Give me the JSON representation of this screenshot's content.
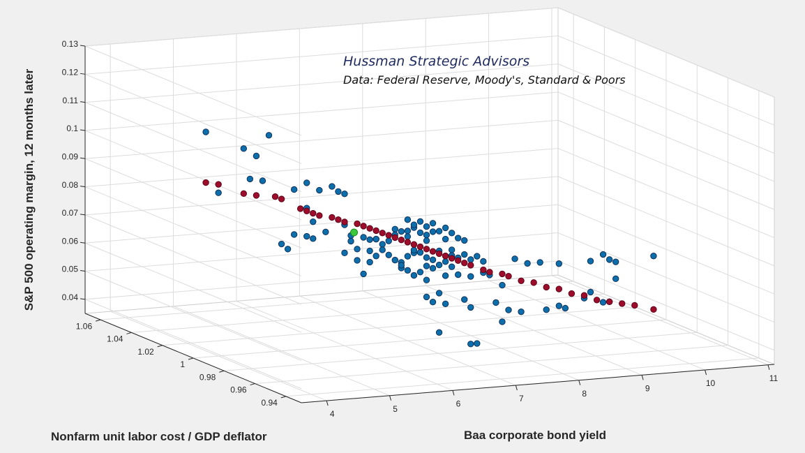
{
  "chart_data": {
    "type": "scatter",
    "subtype": "3d-scatter",
    "annotation_title": "Hussman Strategic Advisors",
    "annotation_source": "Data: Federal Reserve, Moody's, Standard & Poors",
    "xlabel": "Baa corporate bond yield",
    "ylabel": "Nonfarm unit labor cost / GDP deflator",
    "zlabel": "S&P 500 operating margin, 12 months later",
    "x_ticks": [
      "4",
      "5",
      "6",
      "7",
      "8",
      "9",
      "10",
      "11"
    ],
    "y_ticks": [
      "1.06",
      "1.04",
      "1.02",
      "1",
      "0.98",
      "0.96",
      "0.94"
    ],
    "z_ticks": [
      "0.13",
      "0.12",
      "0.11",
      "0.1",
      "0.09",
      "0.08",
      "0.07",
      "0.06",
      "0.05",
      "0.04"
    ],
    "xlim": [
      3.6,
      11.1
    ],
    "ylim": [
      0.93,
      1.07
    ],
    "zlim": [
      0.035,
      0.13
    ],
    "grid": true,
    "colors": {
      "actual": "#0c6eaa",
      "actual_edge": "#12315a",
      "fitted": "#9e0c2c",
      "fitted_edge": "#5a0518",
      "highlight": "#3cc83c",
      "background": "#f0f0f0",
      "pane": "#ffffff",
      "grid": "#dcdcdc"
    },
    "series": [
      {
        "role": "actual",
        "note": "observed values, positions approximate (x, z projected; y fixed near mid depth)",
        "points": [
          [
            3.8,
            1.0,
            0.115
          ],
          [
            4.0,
            1.0,
            0.093
          ],
          [
            4.4,
            1.0,
            0.108
          ],
          [
            4.6,
            1.0,
            0.105
          ],
          [
            4.8,
            1.0,
            0.112
          ],
          [
            4.5,
            1.0,
            0.097
          ],
          [
            4.7,
            1.0,
            0.096
          ],
          [
            5.2,
            1.0,
            0.092
          ],
          [
            5.4,
            1.0,
            0.094
          ],
          [
            5.6,
            1.0,
            0.091
          ],
          [
            5.8,
            1.0,
            0.092
          ],
          [
            5.9,
            1.0,
            0.09
          ],
          [
            6.0,
            1.0,
            0.089
          ],
          [
            5.4,
            1.0,
            0.085
          ],
          [
            5.5,
            1.0,
            0.08
          ],
          [
            5.2,
            1.0,
            0.076
          ],
          [
            5.0,
            1.0,
            0.073
          ],
          [
            5.1,
            1.0,
            0.071
          ],
          [
            5.4,
            1.0,
            0.075
          ],
          [
            5.5,
            1.0,
            0.074
          ],
          [
            5.7,
            1.0,
            0.076
          ],
          [
            6.0,
            1.0,
            0.078
          ],
          [
            6.1,
            1.0,
            0.074
          ],
          [
            6.1,
            1.0,
            0.072
          ],
          [
            6.0,
            1.0,
            0.068
          ],
          [
            6.3,
            1.0,
            0.073
          ],
          [
            6.4,
            1.0,
            0.072
          ],
          [
            6.4,
            1.0,
            0.068
          ],
          [
            6.5,
            1.0,
            0.072
          ],
          [
            6.6,
            1.0,
            0.07
          ],
          [
            6.5,
            1.0,
            0.066
          ],
          [
            6.6,
            1.0,
            0.068
          ],
          [
            6.7,
            1.0,
            0.071
          ],
          [
            6.8,
            1.0,
            0.075
          ],
          [
            6.8,
            1.0,
            0.073
          ],
          [
            6.9,
            1.0,
            0.074
          ],
          [
            7.0,
            1.0,
            0.074
          ],
          [
            7.0,
            1.0,
            0.072
          ],
          [
            7.1,
            1.0,
            0.075
          ],
          [
            7.2,
            1.0,
            0.073
          ],
          [
            7.3,
            1.0,
            0.072
          ],
          [
            7.3,
            1.0,
            0.07
          ],
          [
            7.5,
            1.0,
            0.073
          ],
          [
            7.6,
            1.0,
            0.07
          ],
          [
            7.7,
            1.0,
            0.072
          ],
          [
            7.8,
            1.0,
            0.07
          ],
          [
            7.9,
            1.0,
            0.069
          ],
          [
            7.0,
            1.0,
            0.078
          ],
          [
            7.1,
            1.0,
            0.076
          ],
          [
            7.3,
            1.0,
            0.075
          ],
          [
            7.2,
            1.0,
            0.077
          ],
          [
            7.4,
            1.0,
            0.076
          ],
          [
            7.4,
            1.0,
            0.073
          ],
          [
            7.6,
            1.0,
            0.074
          ],
          [
            7.7,
            1.0,
            0.066
          ],
          [
            6.7,
            1.0,
            0.066
          ],
          [
            6.8,
            1.0,
            0.064
          ],
          [
            6.9,
            1.0,
            0.063
          ],
          [
            7.1,
            1.0,
            0.066
          ],
          [
            7.2,
            1.0,
            0.066
          ],
          [
            7.3,
            1.0,
            0.064
          ],
          [
            7.4,
            1.0,
            0.063
          ],
          [
            7.5,
            1.0,
            0.066
          ],
          [
            7.6,
            1.0,
            0.064
          ],
          [
            7.7,
            1.0,
            0.064
          ],
          [
            7.8,
            1.0,
            0.063
          ],
          [
            7.9,
            1.0,
            0.064
          ],
          [
            8.0,
            1.0,
            0.062
          ],
          [
            8.1,
            1.0,
            0.063
          ],
          [
            8.2,
            1.0,
            0.061
          ],
          [
            7.3,
            1.0,
            0.061
          ],
          [
            7.4,
            1.0,
            0.06
          ],
          [
            7.5,
            1.0,
            0.061
          ],
          [
            7.6,
            1.0,
            0.062
          ],
          [
            7.7,
            1.0,
            0.06
          ],
          [
            7.1,
            1.0,
            0.058
          ],
          [
            7.3,
            1.0,
            0.056
          ],
          [
            7.6,
            1.0,
            0.057
          ],
          [
            7.8,
            1.0,
            0.057
          ],
          [
            8.0,
            1.0,
            0.056
          ],
          [
            8.2,
            1.0,
            0.057
          ],
          [
            8.3,
            1.0,
            0.056
          ],
          [
            8.5,
            1.0,
            0.052
          ],
          [
            8.7,
            1.0,
            0.061
          ],
          [
            8.9,
            1.0,
            0.059
          ],
          [
            9.1,
            1.0,
            0.059
          ],
          [
            9.4,
            1.0,
            0.058
          ],
          [
            9.9,
            1.0,
            0.058
          ],
          [
            10.1,
            1.0,
            0.06
          ],
          [
            10.2,
            1.0,
            0.058
          ],
          [
            10.3,
            1.0,
            0.057
          ],
          [
            10.9,
            1.0,
            0.058
          ],
          [
            10.3,
            1.0,
            0.051
          ],
          [
            7.3,
            1.0,
            0.05
          ],
          [
            7.5,
            1.0,
            0.051
          ],
          [
            7.6,
            1.0,
            0.047
          ],
          [
            7.4,
            1.0,
            0.048
          ],
          [
            7.9,
            1.0,
            0.048
          ],
          [
            8.0,
            1.0,
            0.045
          ],
          [
            8.4,
            1.0,
            0.046
          ],
          [
            8.6,
            1.0,
            0.043
          ],
          [
            8.5,
            1.0,
            0.039
          ],
          [
            8.8,
            1.0,
            0.042
          ],
          [
            9.2,
            1.0,
            0.042
          ],
          [
            9.4,
            1.0,
            0.043
          ],
          [
            9.5,
            1.0,
            0.042
          ],
          [
            9.8,
            1.0,
            0.045
          ],
          [
            9.9,
            1.0,
            0.047
          ],
          [
            10.1,
            1.0,
            0.043
          ],
          [
            10.2,
            1.0,
            0.043
          ],
          [
            7.5,
            1.0,
            0.037
          ],
          [
            8.0,
            1.0,
            0.032
          ],
          [
            8.1,
            1.0,
            0.032
          ],
          [
            6.9,
            1.0,
            0.061
          ],
          [
            7.0,
            1.0,
            0.065
          ],
          [
            7.1,
            1.0,
            0.067
          ],
          [
            6.4,
            1.0,
            0.064
          ],
          [
            6.2,
            1.0,
            0.065
          ],
          [
            6.3,
            1.0,
            0.06
          ],
          [
            6.2,
            1.0,
            0.069
          ],
          [
            6.5,
            1.0,
            0.072
          ],
          [
            6.9,
            1.0,
            0.062
          ],
          [
            7.0,
            1.0,
            0.06
          ],
          [
            7.2,
            1.0,
            0.059
          ]
        ]
      },
      {
        "role": "fitted",
        "note": "model fit values along the fitted surface",
        "points": [
          [
            3.8,
            1.0,
            0.097
          ],
          [
            4.0,
            1.0,
            0.096
          ],
          [
            4.4,
            1.0,
            0.092
          ],
          [
            4.6,
            1.0,
            0.091
          ],
          [
            4.9,
            1.0,
            0.09
          ],
          [
            5.0,
            1.0,
            0.089
          ],
          [
            5.3,
            1.0,
            0.085
          ],
          [
            5.4,
            1.0,
            0.084
          ],
          [
            5.5,
            1.0,
            0.083
          ],
          [
            5.6,
            1.0,
            0.082
          ],
          [
            5.8,
            1.0,
            0.081
          ],
          [
            5.9,
            1.0,
            0.08
          ],
          [
            6.0,
            1.0,
            0.079
          ],
          [
            6.2,
            1.0,
            0.078
          ],
          [
            6.3,
            1.0,
            0.077
          ],
          [
            6.4,
            1.0,
            0.076
          ],
          [
            6.5,
            1.0,
            0.075
          ],
          [
            6.6,
            1.0,
            0.074
          ],
          [
            6.7,
            1.0,
            0.073
          ],
          [
            6.8,
            1.0,
            0.072
          ],
          [
            6.9,
            1.0,
            0.071
          ],
          [
            7.0,
            1.0,
            0.07
          ],
          [
            7.1,
            1.0,
            0.069
          ],
          [
            7.2,
            1.0,
            0.068
          ],
          [
            7.3,
            1.0,
            0.067
          ],
          [
            7.4,
            1.0,
            0.066
          ],
          [
            7.5,
            1.0,
            0.065
          ],
          [
            7.6,
            1.0,
            0.064
          ],
          [
            7.7,
            1.0,
            0.063
          ],
          [
            7.8,
            1.0,
            0.062
          ],
          [
            7.9,
            1.0,
            0.061
          ],
          [
            8.0,
            1.0,
            0.06
          ],
          [
            8.2,
            1.0,
            0.058
          ],
          [
            8.3,
            1.0,
            0.057
          ],
          [
            8.5,
            1.0,
            0.056
          ],
          [
            8.6,
            1.0,
            0.055
          ],
          [
            8.8,
            1.0,
            0.053
          ],
          [
            9.0,
            1.0,
            0.052
          ],
          [
            9.2,
            1.0,
            0.05
          ],
          [
            9.4,
            1.0,
            0.049
          ],
          [
            9.6,
            1.0,
            0.047
          ],
          [
            9.8,
            1.0,
            0.046
          ],
          [
            10.0,
            1.0,
            0.044
          ],
          [
            10.2,
            1.0,
            0.043
          ],
          [
            10.4,
            1.0,
            0.042
          ],
          [
            10.6,
            1.0,
            0.041
          ],
          [
            10.9,
            1.0,
            0.039
          ]
        ]
      },
      {
        "role": "highlight",
        "note": "current observation",
        "points": [
          [
            6.15,
            1.0,
            0.075
          ]
        ]
      }
    ]
  }
}
